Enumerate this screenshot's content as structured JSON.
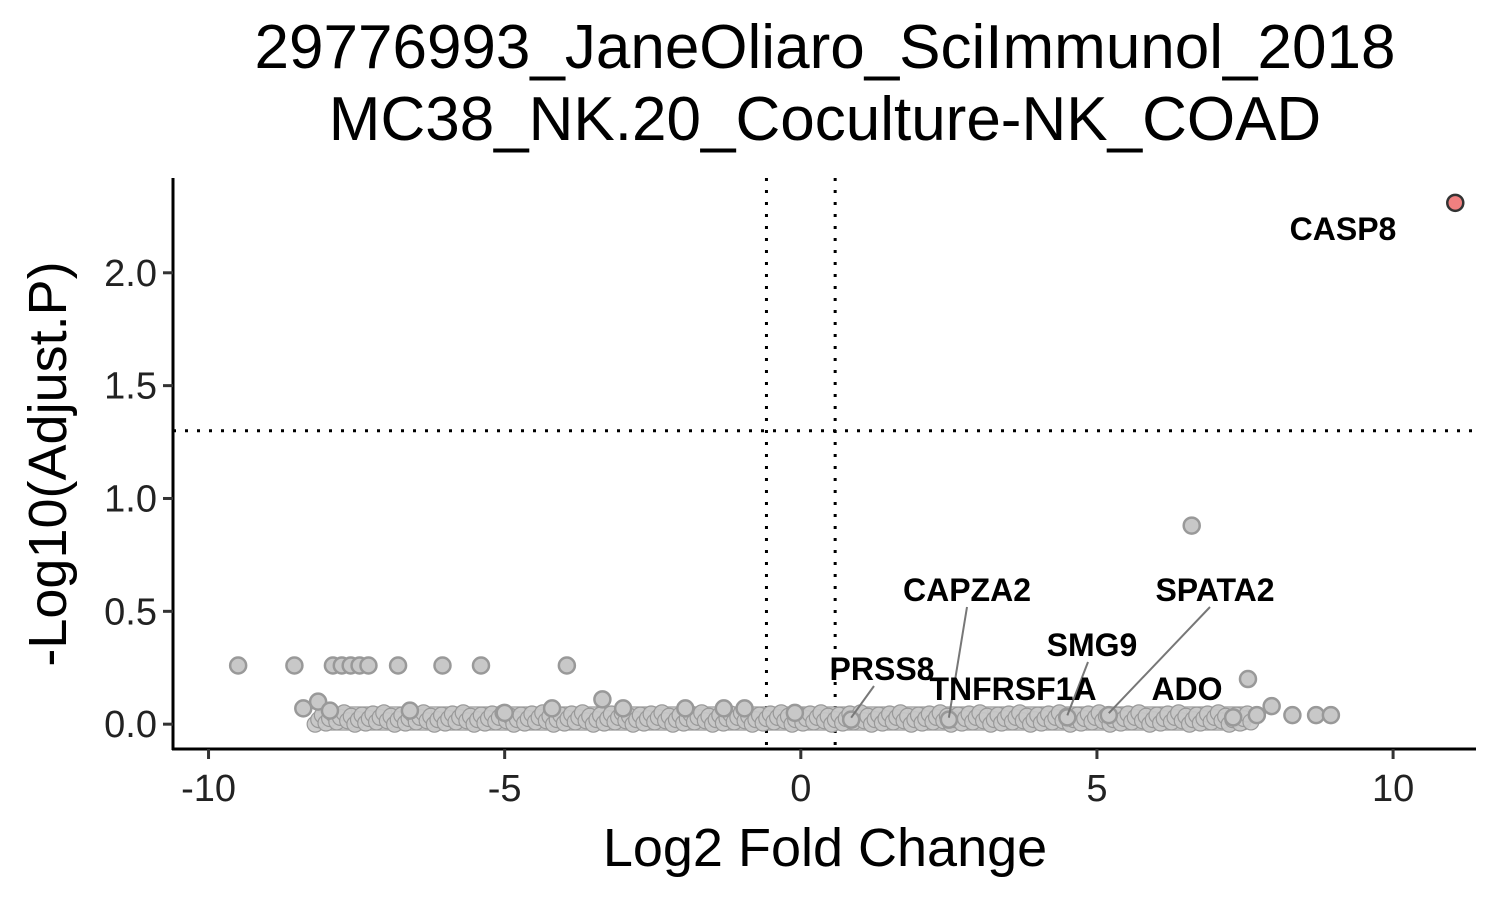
{
  "chart_data": {
    "type": "scatter",
    "title": [
      "29776993_JaneOliaro_SciImmunol_2018",
      "MC38_NK.20_Coculture-NK_COAD"
    ],
    "xlabel": "Log2 Fold Change",
    "ylabel": "-Log10(Adjust.P)",
    "xlim": [
      -10.6,
      11.4
    ],
    "ylim": [
      -0.11,
      2.42
    ],
    "xticks": [
      -10,
      -5,
      0,
      5,
      10
    ],
    "xtick_labels": [
      "-10",
      "-5",
      "0",
      "5",
      "10"
    ],
    "yticks": [
      0,
      0.5,
      1,
      1.5,
      2
    ],
    "ytick_labels": [
      "0.0",
      "0.5",
      "1.0",
      "1.5",
      "2.0"
    ],
    "thresholds": {
      "log2fc": [
        -0.58,
        0.58
      ],
      "neg_log10_p": 1.3
    },
    "grid": false,
    "legend": "none",
    "colors": {
      "significant": "#f08080",
      "nonsignificant": "#c8c8c8",
      "edge": "#999999",
      "significant_edge": "#333333"
    },
    "points": [
      {
        "x": 11.05,
        "y": 2.31,
        "significant": true
      },
      {
        "x": 6.6,
        "y": 0.88
      },
      {
        "x": 7.55,
        "y": 0.2
      },
      {
        "x": 7.95,
        "y": 0.08
      },
      {
        "x": 8.3,
        "y": 0.04
      },
      {
        "x": 8.7,
        "y": 0.04
      },
      {
        "x": 8.95,
        "y": 0.04
      },
      {
        "x": -9.5,
        "y": 0.26
      },
      {
        "x": -8.55,
        "y": 0.26
      },
      {
        "x": -7.9,
        "y": 0.26
      },
      {
        "x": -7.75,
        "y": 0.26
      },
      {
        "x": -7.6,
        "y": 0.26
      },
      {
        "x": -7.45,
        "y": 0.26
      },
      {
        "x": -7.3,
        "y": 0.26
      },
      {
        "x": -6.8,
        "y": 0.26
      },
      {
        "x": -6.05,
        "y": 0.26
      },
      {
        "x": -5.4,
        "y": 0.26
      },
      {
        "x": -3.95,
        "y": 0.26
      },
      {
        "x": -8.15,
        "y": 0.1
      },
      {
        "x": -3.35,
        "y": 0.11
      },
      {
        "x": -8.4,
        "y": 0.07
      },
      {
        "x": -7.95,
        "y": 0.06
      },
      {
        "x": -6.6,
        "y": 0.06
      },
      {
        "x": -5.0,
        "y": 0.05
      },
      {
        "x": -4.2,
        "y": 0.07
      },
      {
        "x": -3.0,
        "y": 0.07
      },
      {
        "x": -1.95,
        "y": 0.07
      },
      {
        "x": -1.3,
        "y": 0.07
      },
      {
        "x": -0.95,
        "y": 0.07
      },
      {
        "x": -0.1,
        "y": 0.05
      },
      {
        "x": 0.85,
        "y": 0.02
      },
      {
        "x": 2.5,
        "y": 0.02
      },
      {
        "x": 4.5,
        "y": 0.03
      },
      {
        "x": 5.2,
        "y": 0.04
      },
      {
        "x": 7.3,
        "y": 0.03
      },
      {
        "x": 7.7,
        "y": 0.04
      }
    ],
    "dense_band": {
      "note": "thousands of overlapping non-significant genes",
      "x_range": [
        -8.2,
        7.6
      ],
      "y_range": [
        0.0,
        0.05
      ]
    },
    "labels": [
      {
        "text": "CASP8",
        "x": 11.05,
        "y": 2.31
      },
      {
        "text": "CAPZA2",
        "x": 2.5,
        "y": 0.02
      },
      {
        "text": "SPATA2",
        "x": 5.2,
        "y": 0.04
      },
      {
        "text": "SMG9",
        "x": 4.5,
        "y": 0.03
      },
      {
        "text": "PRSS8",
        "x": 0.85,
        "y": 0.02
      },
      {
        "text": "TNFRSF1A",
        "x": 2.5,
        "y": 0.02
      },
      {
        "text": "ADO",
        "x": 7.3,
        "y": 0.03
      }
    ]
  }
}
